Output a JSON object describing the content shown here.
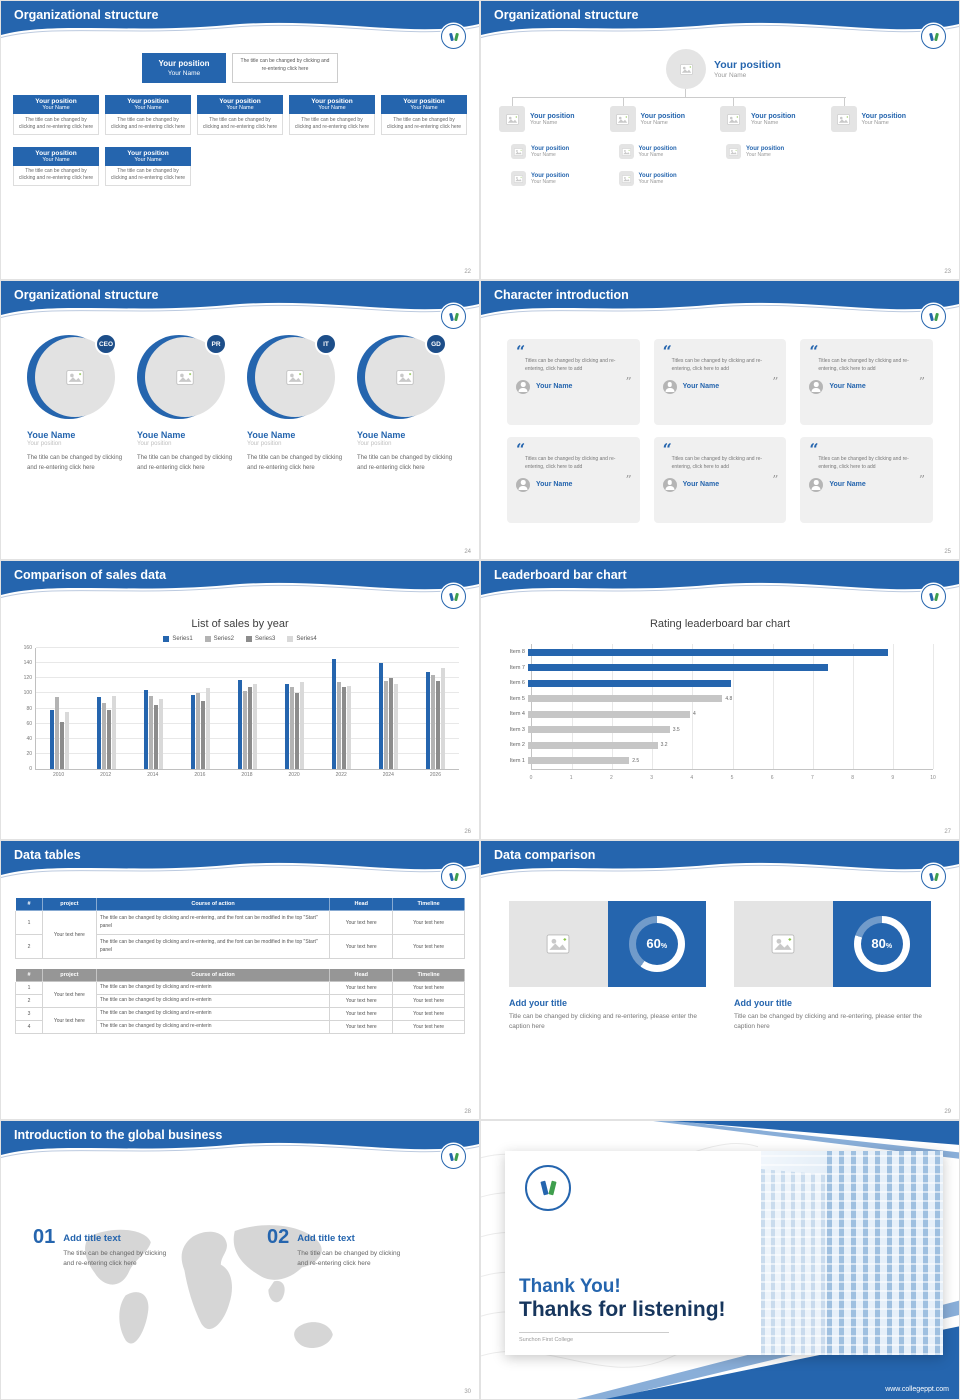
{
  "theme": {
    "blue": "#2565ae",
    "blue_dark": "#1d4e89",
    "navy": "#17365d",
    "gray_bar": "#c6c6c6"
  },
  "common": {
    "your_position": "Your position",
    "your_name": "Your Name",
    "youe_name": "Youe Name",
    "your_text_here": "Your text here",
    "percent_sign": "%",
    "open_quote": "“",
    "close_quote": "”"
  },
  "captions": {
    "change_click": "The title can be changed by clicking and re-entering click here",
    "quote": "Titles can be changed by clicking and re-entering, click here to add",
    "course_long": "The title can be changed by clicking and re-entering, and the font can be modified in the top \"Start\" panel",
    "course_short": "The title can be changed by clicking and re-enterin",
    "comparison": "Title can be changed by clicking and re-entering, please enter the caption here"
  },
  "slides": {
    "s22": {
      "title": "Organizational structure",
      "page": "22"
    },
    "s23": {
      "title": "Organizational structure",
      "page": "23"
    },
    "s24": {
      "title": "Organizational structure",
      "page": "24",
      "badges": [
        "CEO",
        "PR",
        "IT",
        "GD"
      ]
    },
    "s25": {
      "title": "Character introduction",
      "page": "25"
    },
    "s26": {
      "title": "Comparison of sales data",
      "page": "26"
    },
    "s27": {
      "title": "Leaderboard bar chart",
      "page": "27"
    },
    "s28": {
      "title": "Data tables",
      "page": "28",
      "columns": [
        "#",
        "project",
        "Course of action",
        "Head",
        "Timeline"
      ]
    },
    "s29": {
      "title": "Data comparison",
      "page": "29",
      "item_title": "Add your title"
    },
    "s30": {
      "title": "Introduction to the global business",
      "page": "30",
      "items": [
        {
          "num": "01",
          "title": "Add title text"
        },
        {
          "num": "02",
          "title": "Add title text"
        }
      ]
    },
    "s31": {
      "line1": "Thank You!",
      "line2": "Thanks for listening!",
      "college": "Sunchon First College",
      "url": "www.collegeppt.com"
    }
  },
  "chart_data": [
    {
      "type": "bar",
      "title": "List of sales by year",
      "categories": [
        "2010",
        "2012",
        "2014",
        "2016",
        "2018",
        "2020",
        "2022",
        "2024",
        "2026"
      ],
      "series": [
        {
          "name": "Series1",
          "color": "#2565ae",
          "values": [
            78,
            95,
            105,
            98,
            118,
            113,
            145,
            140,
            128
          ]
        },
        {
          "name": "Series2",
          "color": "#b3b3b3",
          "values": [
            95,
            87,
            97,
            100,
            103,
            108,
            115,
            116,
            124
          ]
        },
        {
          "name": "Series3",
          "color": "#8c8c8c",
          "values": [
            62,
            78,
            84,
            90,
            108,
            100,
            108,
            120,
            116
          ]
        },
        {
          "name": "Series4",
          "color": "#d9d9d9",
          "values": [
            75,
            97,
            93,
            107,
            112,
            115,
            110,
            112,
            133
          ]
        }
      ],
      "xlabel": "",
      "ylabel": "",
      "ylim": [
        0,
        160
      ],
      "yticks": [
        0,
        20,
        40,
        60,
        80,
        100,
        120,
        140,
        160
      ],
      "grid": true,
      "legend_position": "top"
    },
    {
      "type": "bar",
      "orientation": "horizontal",
      "title": "Rating leaderboard bar chart",
      "categories": [
        "Item 1",
        "Item 2",
        "Item 3",
        "Item 4",
        "Item 5",
        "Item 6",
        "Item 7",
        "Item 8"
      ],
      "values": [
        2.5,
        3.2,
        3.5,
        4,
        4.8,
        5,
        7.4,
        8.9
      ],
      "colors": [
        "#c6c6c6",
        "#c6c6c6",
        "#c6c6c6",
        "#c6c6c6",
        "#c6c6c6",
        "#2565ae",
        "#2565ae",
        "#2565ae"
      ],
      "value_labels": [
        "2.5",
        "3.2",
        "3.5",
        "4",
        "4.8",
        "",
        "",
        ""
      ],
      "xlabel": "",
      "ylabel": "",
      "xlim": [
        0,
        10
      ],
      "xticks": [
        0,
        1,
        2,
        3,
        4,
        5,
        6,
        7,
        8,
        9,
        10
      ],
      "grid": true,
      "order": "largest_on_top"
    },
    {
      "type": "donut",
      "value": 60,
      "label": "60%"
    },
    {
      "type": "donut",
      "value": 80,
      "label": "80%"
    }
  ]
}
